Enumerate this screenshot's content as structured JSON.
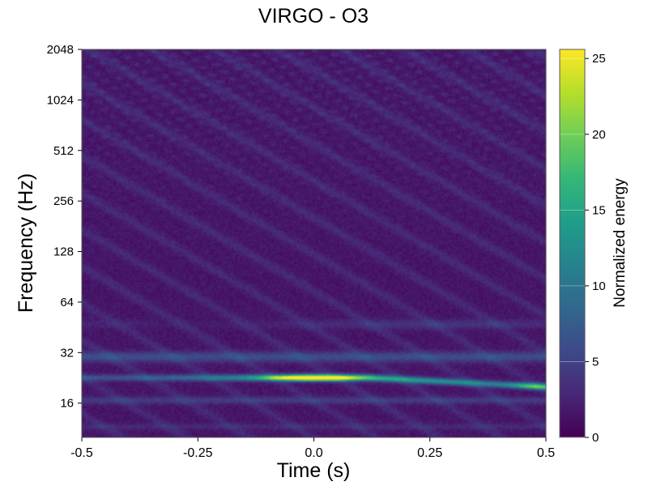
{
  "chart_data": {
    "type": "heatmap",
    "title": "VIRGO - O3",
    "xlabel": "Time (s)",
    "ylabel": "Frequency (Hz)",
    "colorbar_label": "Normalized energy",
    "colormap": "viridis",
    "y_scale": "log2",
    "xlim": [
      -0.5,
      0.5
    ],
    "ylim": [
      10,
      2048
    ],
    "zlim": [
      0,
      25.6
    ],
    "x_ticks": [
      -0.5,
      -0.25,
      0.0,
      0.25,
      0.5
    ],
    "x_tick_labels": [
      "-0.5",
      "-0.25",
      "0.0",
      "0.25",
      "0.5"
    ],
    "y_ticks": [
      16,
      32,
      64,
      128,
      256,
      512,
      1024,
      2048
    ],
    "y_tick_labels": [
      "16",
      "32",
      "64",
      "128",
      "256",
      "512",
      "1024",
      "2048"
    ],
    "colorbar_ticks": [
      0,
      5,
      10,
      15,
      20,
      25
    ],
    "colorbar_tick_labels": [
      "0",
      "5",
      "10",
      "15",
      "20",
      "25"
    ],
    "features": [
      {
        "label": "main-event",
        "t_start": -0.11,
        "t_end": 0.12,
        "f_center": 22,
        "energy": 25.6
      },
      {
        "label": "track-left",
        "t_start": -0.5,
        "t_end": -0.11,
        "f_center": 22,
        "energy": 14
      },
      {
        "label": "track-right",
        "t_start": 0.12,
        "t_end": 0.5,
        "f_center": 20,
        "energy": 14
      },
      {
        "label": "right-edge",
        "t_start": 0.43,
        "t_end": 0.5,
        "f_center": 20,
        "energy": 22
      },
      {
        "label": "band-30hz",
        "t_start": -0.5,
        "t_end": 0.5,
        "f_center": 30,
        "energy": 5.5
      }
    ]
  }
}
